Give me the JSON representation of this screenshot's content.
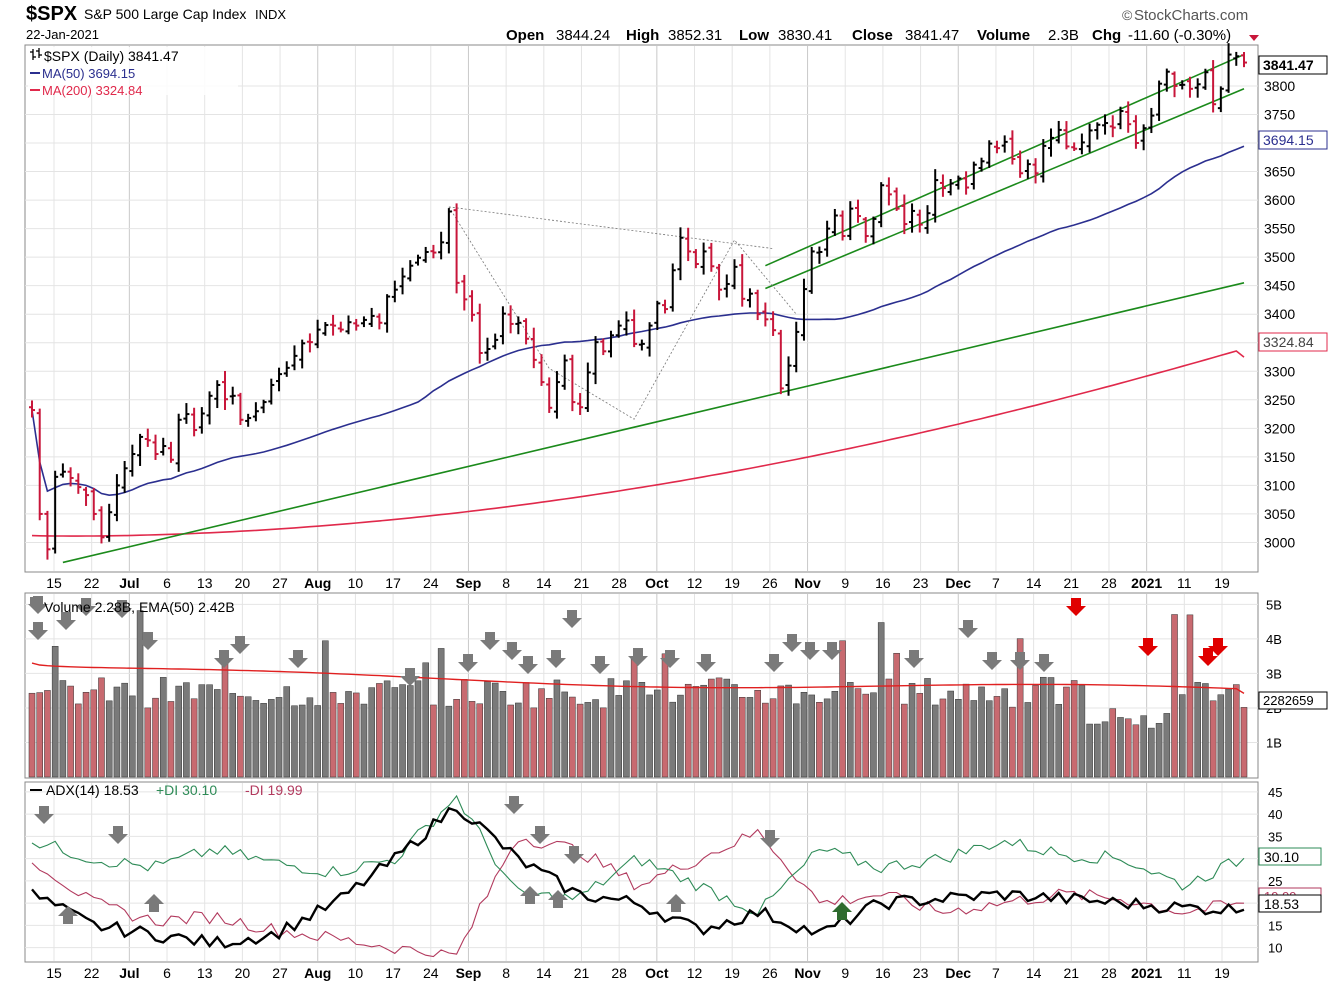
{
  "header": {
    "symbol": "$SPX",
    "name": "S&P 500 Large Cap Index",
    "exchange": "INDX",
    "date": "22-Jan-2021",
    "brand": "StockCharts.com",
    "brand_mark": "©",
    "open_label": "Open",
    "open": "3844.24",
    "high_label": "High",
    "high": "3852.31",
    "low_label": "Low",
    "low": "3830.41",
    "close_label": "Close",
    "close": "3841.47",
    "volume_label": "Volume",
    "volume": "2.3B",
    "chg_label": "Chg",
    "chg": "-11.60 (-0.30%)"
  },
  "colors": {
    "up": "#000000",
    "down": "#c8163a",
    "ma50": "#2b2f8f",
    "ma200": "#e0294b",
    "trend": "#1b8a1b",
    "grid": "#e4e4e4",
    "vol_up": "#7a7a7a",
    "vol_down": "#c86a70",
    "vol_ema": "#e02020",
    "pdi": "#2e8b57",
    "mdi": "#b23a5e",
    "adx": "#000000",
    "arrow_gray": "#7a7a7a",
    "arrow_red": "#e00000",
    "arrow_green": "#2e6b2e"
  },
  "chart_data": [
    {
      "type": "ohlc",
      "title": "$SPX (Daily) 3841.47",
      "legend": [
        {
          "label": "$SPX (Daily) 3841.47",
          "glyph": "ohlc"
        },
        {
          "label": "MA(50) 3694.15",
          "color": "#2b2f8f"
        },
        {
          "label": "MA(200) 3324.84",
          "color": "#e0294b"
        }
      ],
      "yticks": [
        3000,
        3050,
        3100,
        3150,
        3200,
        3250,
        3300,
        3350,
        3400,
        3450,
        3500,
        3550,
        3600,
        3650,
        3700,
        3750,
        3800
      ],
      "ylim": [
        2950,
        3870
      ],
      "closes": [
        3232,
        3050,
        2988,
        3115,
        3124,
        3113,
        3097,
        3083,
        3050,
        3009,
        3053,
        3100,
        3130,
        3155,
        3185,
        3179,
        3155,
        3169,
        3145,
        3215,
        3225,
        3197,
        3226,
        3257,
        3276,
        3251,
        3257,
        3215,
        3218,
        3230,
        3246,
        3276,
        3295,
        3306,
        3327,
        3349,
        3351,
        3373,
        3381,
        3380,
        3373,
        3386,
        3380,
        3390,
        3397,
        3385,
        3431,
        3443,
        3466,
        3485,
        3499,
        3509,
        3508,
        3526,
        3580,
        3455,
        3426,
        3399,
        3332,
        3339,
        3355,
        3401,
        3383,
        3385,
        3357,
        3320,
        3281,
        3236,
        3281,
        3319,
        3246,
        3237,
        3298,
        3351,
        3335,
        3363,
        3380,
        3389,
        3348,
        3348,
        3380,
        3419,
        3409,
        3477,
        3534,
        3510,
        3488,
        3510,
        3484,
        3443,
        3453,
        3483,
        3427,
        3436,
        3400,
        3391,
        3372,
        3270,
        3310,
        3369,
        3444,
        3510,
        3509,
        3550,
        3573,
        3537,
        3585,
        3572,
        3537,
        3567,
        3626,
        3610,
        3585,
        3558,
        3581,
        3557,
        3577,
        3635,
        3621,
        3629,
        3638,
        3622,
        3662,
        3668,
        3699,
        3691,
        3702,
        3672,
        3647,
        3663,
        3647,
        3695,
        3709,
        3723,
        3694,
        3690,
        3701,
        3722,
        3732,
        3735,
        3727,
        3756,
        3733,
        3700,
        3726,
        3748,
        3804,
        3825,
        3800,
        3802,
        3795,
        3803,
        3824,
        3768,
        3795,
        3855,
        3852,
        3841
      ],
      "ma50_end": 3694.15,
      "ma200_end": 3324.84,
      "trendlines": [
        {
          "from": [
            "2020-06-12",
            2965
          ],
          "to": [
            "2021-01-22",
            3455
          ]
        },
        {
          "from": [
            "2020-11-04",
            3515
          ],
          "to": [
            "2021-01-22",
            3855
          ]
        },
        {
          "from": [
            "2020-11-04",
            3475
          ],
          "to": [
            "2021-01-22",
            3795
          ]
        }
      ],
      "value_tags": [
        "3841.47",
        "3694.15",
        "3324.84"
      ]
    },
    {
      "type": "bar",
      "title": "Volume 2.28B, EMA(50) 2.42B",
      "yticks": [
        "1B",
        "2B",
        "3B",
        "4B",
        "5B"
      ],
      "ylim_b": [
        0,
        5.3
      ],
      "value_tag": "2282659",
      "ema_start_b": 3.3,
      "ema_end_b": 2.42
    },
    {
      "type": "line",
      "title": "ADX(14) 18.53 +DI 30.10 -DI 19.99",
      "legend": [
        {
          "label": "ADX(14) 18.53",
          "color": "#000000"
        },
        {
          "label": "+DI 30.10",
          "color": "#2e8b57"
        },
        {
          "label": "-DI 19.99",
          "color": "#b23a5e"
        }
      ],
      "yticks": [
        10,
        15,
        20,
        25,
        30,
        35,
        40,
        45
      ],
      "ylim": [
        7,
        47
      ],
      "value_tags": [
        "30.10",
        "18.53",
        "19.99"
      ]
    }
  ],
  "x_axis": {
    "labels": [
      {
        "text": "15",
        "bold": false
      },
      {
        "text": "22",
        "bold": false
      },
      {
        "text": "Jul",
        "bold": true
      },
      {
        "text": "6",
        "bold": false
      },
      {
        "text": "13",
        "bold": false
      },
      {
        "text": "20",
        "bold": false
      },
      {
        "text": "27",
        "bold": false
      },
      {
        "text": "Aug",
        "bold": true
      },
      {
        "text": "10",
        "bold": false
      },
      {
        "text": "17",
        "bold": false
      },
      {
        "text": "24",
        "bold": false
      },
      {
        "text": "Sep",
        "bold": true
      },
      {
        "text": "8",
        "bold": false
      },
      {
        "text": "14",
        "bold": false
      },
      {
        "text": "21",
        "bold": false
      },
      {
        "text": "28",
        "bold": false
      },
      {
        "text": "Oct",
        "bold": true
      },
      {
        "text": "12",
        "bold": false
      },
      {
        "text": "19",
        "bold": false
      },
      {
        "text": "26",
        "bold": false
      },
      {
        "text": "Nov",
        "bold": true
      },
      {
        "text": "9",
        "bold": false
      },
      {
        "text": "16",
        "bold": false
      },
      {
        "text": "23",
        "bold": false
      },
      {
        "text": "Dec",
        "bold": true
      },
      {
        "text": "7",
        "bold": false
      },
      {
        "text": "14",
        "bold": false
      },
      {
        "text": "21",
        "bold": false
      },
      {
        "text": "28",
        "bold": false
      },
      {
        "text": "2021",
        "bold": true
      },
      {
        "text": "11",
        "bold": false
      },
      {
        "text": "19",
        "bold": false
      }
    ]
  }
}
